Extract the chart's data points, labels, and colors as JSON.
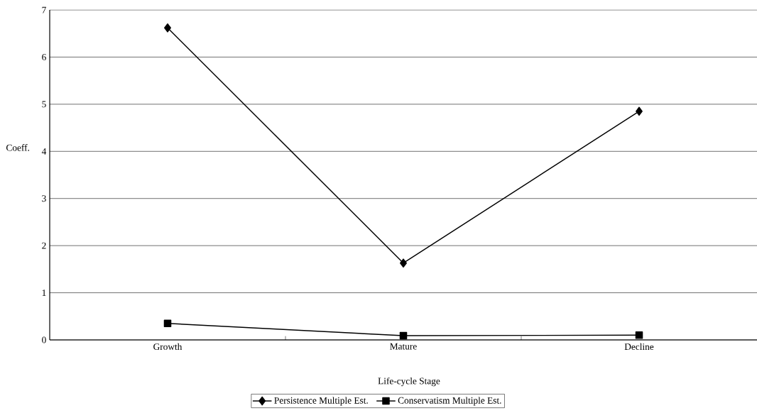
{
  "chart_data": {
    "type": "line",
    "xlabel": "Life-cycle Stage",
    "ylabel": "Coeff.",
    "categories": [
      "Growth",
      "Mature",
      "Decline"
    ],
    "series": [
      {
        "name": "Persistence Multiple Est.",
        "color": "#000000",
        "marker": "diamond",
        "values": [
          6.62,
          1.63,
          4.85
        ]
      },
      {
        "name": "Conservatism Multiple Est.",
        "color": "#000000",
        "marker": "square",
        "values": [
          0.35,
          0.09,
          0.1
        ]
      }
    ],
    "ylim": [
      0,
      7
    ],
    "yticks": [
      0,
      1,
      2,
      3,
      4,
      5,
      6,
      7
    ],
    "grid": "y",
    "legend": "bottom"
  }
}
